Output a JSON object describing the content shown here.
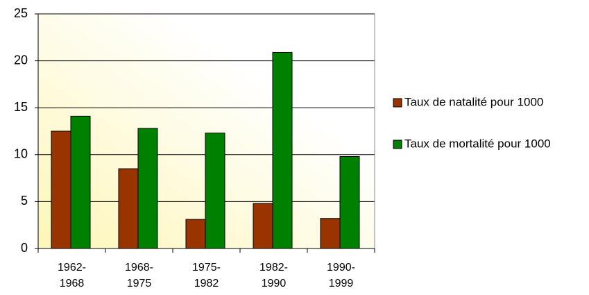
{
  "chart_data": {
    "type": "bar",
    "categories": [
      "1962-\n1968",
      "1968-\n1975",
      "1975-\n1982",
      "1982-\n1990",
      "1990-\n1999"
    ],
    "series": [
      {
        "name": "Taux de natalité pour 1000",
        "color": "#993300",
        "values": [
          12.5,
          8.5,
          3.1,
          4.8,
          3.2
        ]
      },
      {
        "name": "Taux de mortalité pour 1000",
        "color": "#008000",
        "values": [
          14.1,
          12.8,
          12.3,
          20.9,
          9.8
        ]
      }
    ],
    "ylim": [
      0,
      25
    ],
    "yticks": [
      0,
      5,
      10,
      15,
      20,
      25
    ],
    "grid": true,
    "legend": "right"
  }
}
